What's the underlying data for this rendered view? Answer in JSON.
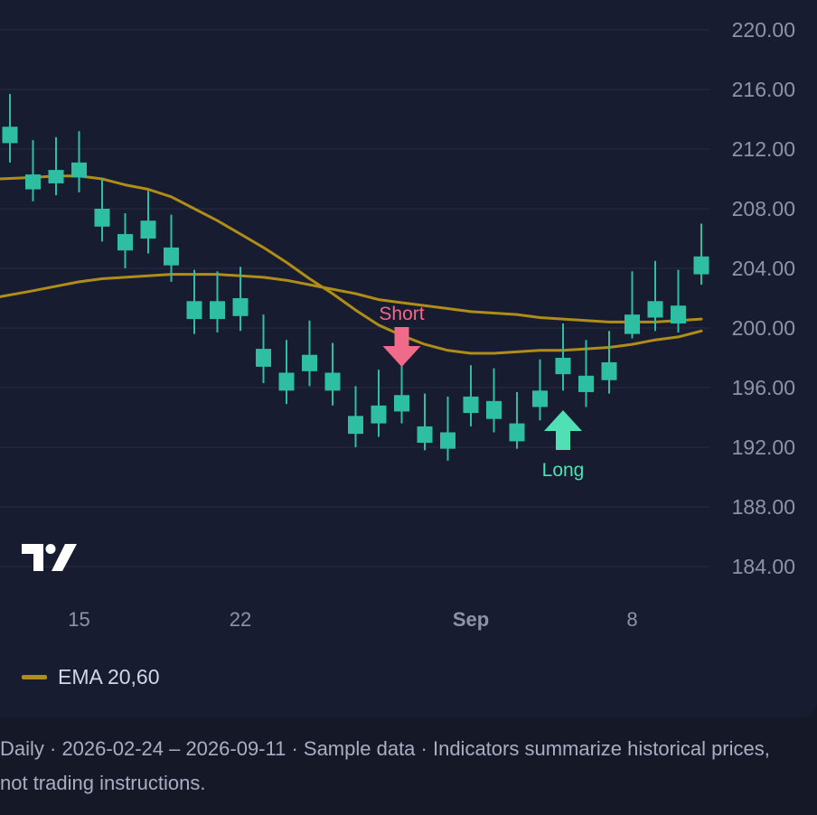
{
  "chart_data": {
    "type": "candlestick",
    "x_labels": [
      "15",
      "22",
      "Sep",
      "8"
    ],
    "ylim": [
      182,
      222
    ],
    "y_ticks": [
      "220.00",
      "216.00",
      "212.00",
      "208.00",
      "204.00",
      "200.00",
      "196.00",
      "192.00",
      "188.00",
      "184.00"
    ],
    "grid": true,
    "candles": [
      {
        "o": 212.4,
        "h": 215.7,
        "l": 211.1,
        "c": 213.5
      },
      {
        "o": 209.3,
        "h": 212.6,
        "l": 208.5,
        "c": 210.3
      },
      {
        "o": 209.7,
        "h": 212.8,
        "l": 208.9,
        "c": 210.6
      },
      {
        "o": 210.1,
        "h": 213.2,
        "l": 209.1,
        "c": 211.1
      },
      {
        "o": 206.8,
        "h": 210.0,
        "l": 205.8,
        "c": 208.0
      },
      {
        "o": 205.2,
        "h": 207.7,
        "l": 204.0,
        "c": 206.3
      },
      {
        "o": 206.0,
        "h": 209.2,
        "l": 205.0,
        "c": 207.2
      },
      {
        "o": 204.2,
        "h": 207.6,
        "l": 203.1,
        "c": 205.4
      },
      {
        "o": 200.6,
        "h": 203.9,
        "l": 199.6,
        "c": 201.8
      },
      {
        "o": 200.6,
        "h": 203.8,
        "l": 199.7,
        "c": 201.8
      },
      {
        "o": 200.8,
        "h": 204.1,
        "l": 199.8,
        "c": 202.0
      },
      {
        "o": 197.4,
        "h": 200.9,
        "l": 196.3,
        "c": 198.6
      },
      {
        "o": 195.8,
        "h": 199.2,
        "l": 194.9,
        "c": 197.0
      },
      {
        "o": 197.1,
        "h": 200.5,
        "l": 196.1,
        "c": 198.2
      },
      {
        "o": 195.8,
        "h": 199.0,
        "l": 194.8,
        "c": 197.0
      },
      {
        "o": 192.9,
        "h": 196.1,
        "l": 192.0,
        "c": 194.1
      },
      {
        "o": 193.6,
        "h": 197.2,
        "l": 192.7,
        "c": 194.8
      },
      {
        "o": 194.4,
        "h": 197.9,
        "l": 193.6,
        "c": 195.5
      },
      {
        "o": 192.3,
        "h": 195.6,
        "l": 191.8,
        "c": 193.4
      },
      {
        "o": 191.9,
        "h": 195.4,
        "l": 191.1,
        "c": 193.0
      },
      {
        "o": 194.3,
        "h": 197.5,
        "l": 193.4,
        "c": 195.4
      },
      {
        "o": 193.9,
        "h": 197.3,
        "l": 193.0,
        "c": 195.1
      },
      {
        "o": 192.4,
        "h": 195.7,
        "l": 191.9,
        "c": 193.6
      },
      {
        "o": 194.7,
        "h": 197.9,
        "l": 193.8,
        "c": 195.8
      },
      {
        "o": 196.9,
        "h": 200.3,
        "l": 195.8,
        "c": 198.0
      },
      {
        "o": 195.7,
        "h": 199.2,
        "l": 194.7,
        "c": 196.8
      },
      {
        "o": 196.5,
        "h": 199.8,
        "l": 195.6,
        "c": 197.7
      },
      {
        "o": 199.6,
        "h": 203.8,
        "l": 199.3,
        "c": 200.9
      },
      {
        "o": 200.7,
        "h": 204.5,
        "l": 199.8,
        "c": 201.8
      },
      {
        "o": 200.3,
        "h": 203.9,
        "l": 199.7,
        "c": 201.5
      },
      {
        "o": 203.6,
        "h": 207.0,
        "l": 202.9,
        "c": 204.8
      }
    ],
    "series": [
      {
        "name": "EMA 20",
        "color": "#b08d16",
        "values": [
          210.0,
          210.1,
          210.2,
          210.2,
          210.0,
          209.6,
          209.3,
          208.8,
          208.0,
          207.2,
          206.3,
          205.4,
          204.4,
          203.3,
          202.3,
          201.2,
          200.2,
          199.5,
          198.9,
          198.5,
          198.3,
          198.3,
          198.4,
          198.5,
          198.5,
          198.6,
          198.7,
          198.9,
          199.2,
          199.4,
          199.8
        ]
      },
      {
        "name": "EMA 60",
        "color": "#b08d16",
        "values": [
          202.1,
          202.5,
          202.8,
          203.1,
          203.3,
          203.4,
          203.5,
          203.6,
          203.6,
          203.6,
          203.5,
          203.4,
          203.2,
          202.9,
          202.6,
          202.3,
          201.9,
          201.7,
          201.5,
          201.3,
          201.1,
          201.0,
          200.9,
          200.7,
          200.6,
          200.5,
          200.4,
          200.4,
          200.4,
          200.5,
          200.6
        ]
      }
    ],
    "annotations": [
      {
        "text": "Short",
        "index": 17,
        "type": "sell",
        "color": "#f06a8a"
      },
      {
        "text": "Long",
        "index": 24,
        "type": "buy",
        "color": "#4fe0b4"
      }
    ],
    "candle_color": "#2ebfa3",
    "legend": "bottom-left"
  },
  "legend": {
    "label": "EMA 20,60"
  },
  "caption": {
    "text": "Daily · 2026-02-24 – 2026-09-11 · Sample data · Indicators summarize historical prices, not trading instructions."
  }
}
